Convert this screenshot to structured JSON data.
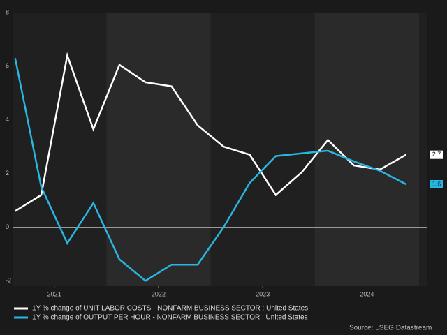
{
  "chart_data": {
    "type": "line",
    "x": [
      2021.125,
      2021.375,
      2021.625,
      2021.875,
      2022.125,
      2022.375,
      2022.625,
      2022.875,
      2023.125,
      2023.375,
      2023.625,
      2023.875,
      2024.125,
      2024.375,
      2024.625,
      2024.875
    ],
    "xlim": [
      2021.1,
      2025.08
    ],
    "xticks": [
      {
        "value": 2021.5,
        "label": "2021"
      },
      {
        "value": 2022.5,
        "label": "2022"
      },
      {
        "value": 2023.5,
        "label": "2023"
      },
      {
        "value": 2024.5,
        "label": "2024"
      }
    ],
    "ylim": [
      -2.2,
      8
    ],
    "yticks": [
      -2,
      0,
      2,
      4,
      6,
      8
    ],
    "series": [
      {
        "name": "1Y % change of UNIT LABOR COSTS - NONFARM BUSINESS SECTOR : United States",
        "color": "#ffffff",
        "values": [
          0.6,
          1.2,
          6.4,
          3.65,
          6.05,
          5.4,
          5.25,
          3.8,
          3.0,
          2.7,
          1.2,
          2.05,
          3.25,
          2.3,
          2.15,
          2.7
        ]
      },
      {
        "name": "1Y % change of OUTPUT PER HOUR - NONFARM BUSINESS SECTOR : United States",
        "color": "#29b6e0",
        "values": [
          6.3,
          1.5,
          -0.6,
          0.9,
          -1.2,
          -2.0,
          -1.4,
          -1.4,
          0.0,
          1.65,
          2.65,
          2.75,
          2.85,
          2.45,
          2.1,
          1.6
        ]
      }
    ],
    "source": "Source: LSEG Datastream"
  }
}
